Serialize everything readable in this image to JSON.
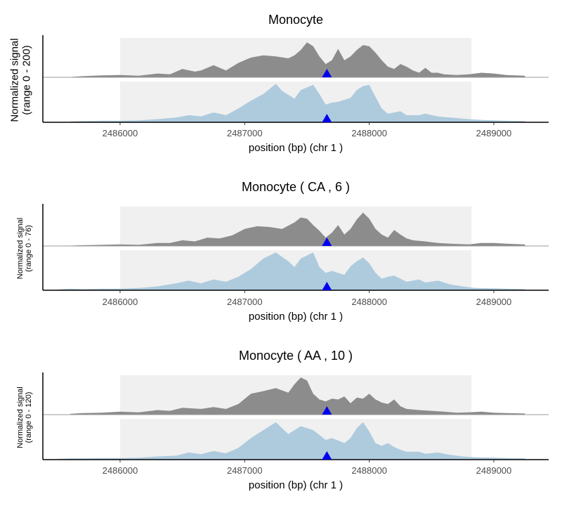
{
  "chart_data": [
    {
      "type": "area",
      "title": "Monocyte",
      "ylabel_line1": "Normalized signal",
      "ylabel_line2": "(range 0 - 200)",
      "xlabel": "position (bp) (chr 1 )",
      "x_ticks": [
        2486000,
        2487000,
        2488000,
        2489000
      ],
      "x_tick_labels": [
        "2486000",
        "2487000",
        "2488000",
        "2489000"
      ],
      "xlim": [
        2485380,
        2489440
      ],
      "highlight_region": [
        2486000,
        2488820
      ],
      "variant_position": 2487660,
      "grid": false,
      "series": [
        {
          "color": "#8c8c8c",
          "x": [
            2485600,
            2485700,
            2485850,
            2486000,
            2486150,
            2486300,
            2486400,
            2486500,
            2486600,
            2486650,
            2486750,
            2486850,
            2486950,
            2487050,
            2487150,
            2487250,
            2487350,
            2487400,
            2487450,
            2487500,
            2487550,
            2487600,
            2487650,
            2487700,
            2487750,
            2487800,
            2487850,
            2487900,
            2487950,
            2488000,
            2488050,
            2488100,
            2488150,
            2488200,
            2488250,
            2488300,
            2488350,
            2488400,
            2488450,
            2488500,
            2488550,
            2488600,
            2488700,
            2488800,
            2488900,
            2489000,
            2489100,
            2489250
          ],
          "values": [
            0.01,
            0.03,
            0.05,
            0.06,
            0.04,
            0.1,
            0.08,
            0.22,
            0.15,
            0.18,
            0.32,
            0.18,
            0.38,
            0.52,
            0.58,
            0.55,
            0.5,
            0.58,
            0.72,
            0.92,
            0.82,
            0.55,
            0.35,
            0.45,
            0.75,
            0.45,
            0.55,
            0.72,
            0.85,
            0.82,
            0.65,
            0.45,
            0.28,
            0.22,
            0.35,
            0.28,
            0.18,
            0.12,
            0.25,
            0.12,
            0.12,
            0.08,
            0.06,
            0.08,
            0.12,
            0.1,
            0.06,
            0.04
          ]
        },
        {
          "color": "#aecbde",
          "x": [
            2485600,
            2485700,
            2485850,
            2486000,
            2486150,
            2486300,
            2486450,
            2486550,
            2486650,
            2486750,
            2486850,
            2486950,
            2487050,
            2487150,
            2487200,
            2487250,
            2487300,
            2487400,
            2487450,
            2487550,
            2487600,
            2487650,
            2487700,
            2487750,
            2487850,
            2487900,
            2487950,
            2488000,
            2488050,
            2488100,
            2488150,
            2488200,
            2488250,
            2488300,
            2488400,
            2488450,
            2488550,
            2488650,
            2488800,
            2488900,
            2489000,
            2489100,
            2489250
          ],
          "values": [
            0.02,
            0.03,
            0.04,
            0.04,
            0.05,
            0.08,
            0.12,
            0.18,
            0.15,
            0.25,
            0.18,
            0.35,
            0.55,
            0.72,
            0.85,
            0.98,
            0.8,
            0.6,
            0.82,
            0.95,
            0.72,
            0.45,
            0.5,
            0.52,
            0.62,
            0.82,
            0.92,
            0.95,
            0.65,
            0.35,
            0.22,
            0.25,
            0.28,
            0.18,
            0.18,
            0.22,
            0.15,
            0.12,
            0.08,
            0.06,
            0.05,
            0.04,
            0.03
          ]
        }
      ]
    },
    {
      "type": "area",
      "title": "Monocyte ( CA , 6 )",
      "ylabel_line1": "Normalized signal",
      "ylabel_line2": "(range 0 - 76)",
      "xlabel": "position (bp) (chr 1 )",
      "x_ticks": [
        2486000,
        2487000,
        2488000,
        2489000
      ],
      "x_tick_labels": [
        "2486000",
        "2487000",
        "2488000",
        "2489000"
      ],
      "xlim": [
        2485380,
        2489440
      ],
      "highlight_region": [
        2486000,
        2488820
      ],
      "variant_position": 2487660,
      "grid": false,
      "series": [
        {
          "color": "#8c8c8c",
          "x": [
            2485600,
            2485700,
            2485850,
            2486000,
            2486150,
            2486300,
            2486400,
            2486500,
            2486600,
            2486700,
            2486800,
            2486900,
            2487000,
            2487100,
            2487200,
            2487300,
            2487400,
            2487450,
            2487500,
            2487550,
            2487600,
            2487650,
            2487700,
            2487750,
            2487800,
            2487850,
            2487900,
            2487950,
            2488000,
            2488050,
            2488100,
            2488150,
            2488200,
            2488250,
            2488300,
            2488350,
            2488450,
            2488550,
            2488650,
            2488800,
            2488900,
            2489000,
            2489100,
            2489250
          ],
          "values": [
            0.01,
            0.02,
            0.03,
            0.04,
            0.03,
            0.08,
            0.08,
            0.15,
            0.12,
            0.22,
            0.2,
            0.28,
            0.45,
            0.52,
            0.5,
            0.45,
            0.62,
            0.75,
            0.72,
            0.55,
            0.4,
            0.22,
            0.35,
            0.55,
            0.3,
            0.45,
            0.7,
            0.88,
            0.72,
            0.45,
            0.3,
            0.22,
            0.42,
            0.3,
            0.2,
            0.15,
            0.12,
            0.08,
            0.06,
            0.04,
            0.08,
            0.08,
            0.06,
            0.04
          ]
        },
        {
          "color": "#aecbde",
          "x": [
            2485500,
            2485600,
            2485700,
            2485850,
            2486000,
            2486150,
            2486300,
            2486450,
            2486550,
            2486650,
            2486750,
            2486850,
            2486950,
            2487050,
            2487150,
            2487250,
            2487350,
            2487400,
            2487450,
            2487550,
            2487600,
            2487650,
            2487700,
            2487800,
            2487850,
            2487900,
            2487950,
            2488000,
            2488050,
            2488100,
            2488150,
            2488200,
            2488250,
            2488300,
            2488400,
            2488450,
            2488550,
            2488650,
            2488750,
            2488850,
            2489000,
            2489100,
            2489250
          ],
          "values": [
            0.02,
            0.04,
            0.03,
            0.04,
            0.04,
            0.06,
            0.1,
            0.18,
            0.25,
            0.18,
            0.28,
            0.22,
            0.35,
            0.55,
            0.82,
            0.98,
            0.75,
            0.6,
            0.82,
            0.98,
            0.6,
            0.45,
            0.5,
            0.4,
            0.62,
            0.75,
            0.85,
            0.7,
            0.45,
            0.3,
            0.35,
            0.38,
            0.3,
            0.22,
            0.28,
            0.2,
            0.25,
            0.15,
            0.1,
            0.06,
            0.05,
            0.04,
            0.03
          ]
        }
      ]
    },
    {
      "type": "area",
      "title": "Monocyte ( AA , 10 )",
      "ylabel_line1": "Normalized signal",
      "ylabel_line2": "(range 0 - 120)",
      "xlabel": "position (bp) (chr 1 )",
      "x_ticks": [
        2486000,
        2487000,
        2488000,
        2489000
      ],
      "x_tick_labels": [
        "2486000",
        "2487000",
        "2488000",
        "2489000"
      ],
      "xlim": [
        2485380,
        2489440
      ],
      "highlight_region": [
        2486000,
        2488820
      ],
      "variant_position": 2487660,
      "grid": false,
      "series": [
        {
          "color": "#8c8c8c",
          "x": [
            2485600,
            2485700,
            2485850,
            2486000,
            2486150,
            2486300,
            2486400,
            2486500,
            2486650,
            2486750,
            2486850,
            2486950,
            2487050,
            2487150,
            2487250,
            2487350,
            2487400,
            2487450,
            2487500,
            2487550,
            2487600,
            2487650,
            2487700,
            2487750,
            2487800,
            2487850,
            2487900,
            2487950,
            2488000,
            2488050,
            2488100,
            2488150,
            2488200,
            2488250,
            2488300,
            2488400,
            2488500,
            2488600,
            2488700,
            2488800,
            2488900,
            2489000,
            2489100,
            2489250
          ],
          "values": [
            0.02,
            0.04,
            0.05,
            0.08,
            0.06,
            0.12,
            0.1,
            0.18,
            0.15,
            0.2,
            0.15,
            0.28,
            0.55,
            0.62,
            0.7,
            0.58,
            0.8,
            0.98,
            0.9,
            0.55,
            0.4,
            0.35,
            0.42,
            0.4,
            0.48,
            0.3,
            0.45,
            0.42,
            0.55,
            0.4,
            0.32,
            0.28,
            0.4,
            0.22,
            0.15,
            0.12,
            0.1,
            0.08,
            0.05,
            0.06,
            0.08,
            0.05,
            0.04,
            0.03
          ]
        },
        {
          "color": "#aecbde",
          "x": [
            2485500,
            2485600,
            2485700,
            2485850,
            2486000,
            2486150,
            2486300,
            2486450,
            2486550,
            2486650,
            2486750,
            2486850,
            2486950,
            2487050,
            2487150,
            2487250,
            2487350,
            2487450,
            2487550,
            2487650,
            2487700,
            2487800,
            2487850,
            2487900,
            2487950,
            2488000,
            2488050,
            2488100,
            2488150,
            2488200,
            2488250,
            2488300,
            2488400,
            2488450,
            2488550,
            2488650,
            2488750,
            2488850,
            2489000,
            2489100,
            2489250
          ],
          "values": [
            0.02,
            0.03,
            0.03,
            0.04,
            0.04,
            0.05,
            0.08,
            0.1,
            0.18,
            0.14,
            0.22,
            0.16,
            0.3,
            0.55,
            0.75,
            0.95,
            0.65,
            0.85,
            0.75,
            0.5,
            0.55,
            0.42,
            0.55,
            0.8,
            0.95,
            0.72,
            0.42,
            0.35,
            0.42,
            0.32,
            0.25,
            0.2,
            0.2,
            0.15,
            0.18,
            0.12,
            0.08,
            0.06,
            0.05,
            0.04,
            0.03
          ]
        }
      ]
    }
  ]
}
